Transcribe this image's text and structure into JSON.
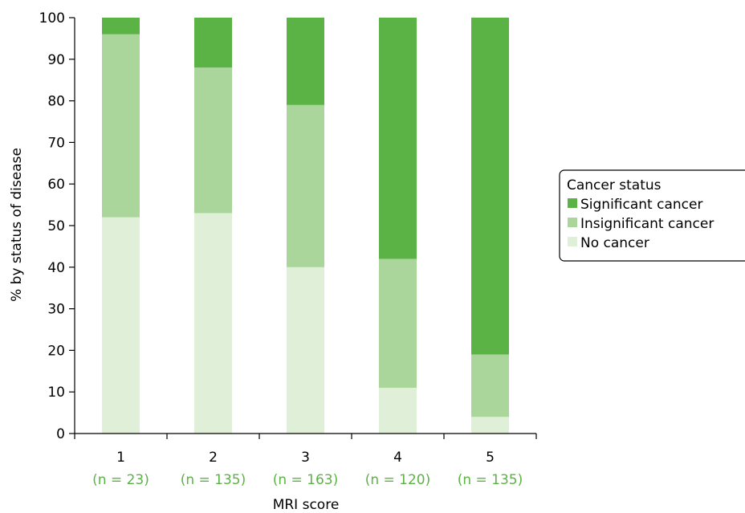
{
  "chart_data": {
    "type": "bar",
    "stacked": true,
    "categories": [
      "1",
      "2",
      "3",
      "4",
      "5"
    ],
    "sample_sizes": [
      "(n = 23)",
      "(n = 135)",
      "(n = 163)",
      "(n = 120)",
      "(n = 135)"
    ],
    "series": [
      {
        "name": "No cancer",
        "color": "#e0f0d8",
        "values": [
          52,
          53,
          40,
          11,
          4
        ]
      },
      {
        "name": "Insignificant cancer",
        "color": "#aad59b",
        "values": [
          44,
          35,
          39,
          31,
          15
        ]
      },
      {
        "name": "Significant cancer",
        "color": "#5cb345",
        "values": [
          4,
          12,
          21,
          58,
          81
        ]
      }
    ],
    "xlabel": "MRI score",
    "ylabel": "% by status of disease",
    "ylim": [
      0,
      100
    ],
    "yticks": [
      0,
      10,
      20,
      30,
      40,
      50,
      60,
      70,
      80,
      90,
      100
    ],
    "grid": false,
    "legend": {
      "title": "Cancer status",
      "placement": "right",
      "order": [
        "Significant cancer",
        "Insignificant cancer",
        "No cancer"
      ]
    },
    "n_label_color": "#5cb345"
  }
}
